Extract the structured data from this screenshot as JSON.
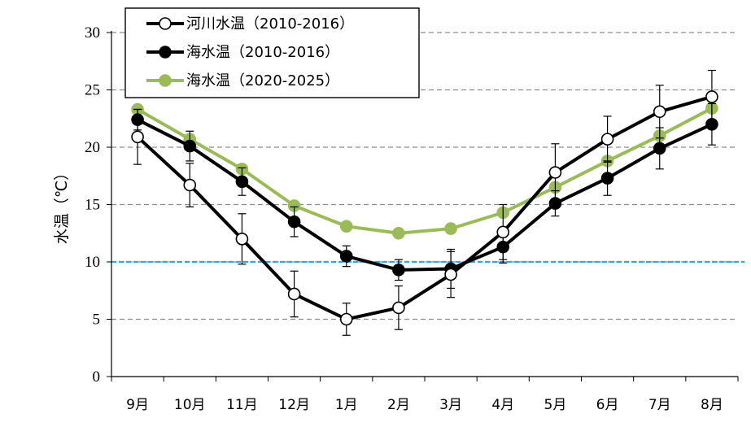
{
  "chart_data": {
    "type": "line",
    "title": "",
    "xlabel": "",
    "ylabel": "水温（℃）",
    "ylim": [
      0,
      30
    ],
    "yticks": [
      0,
      5,
      10,
      15,
      20,
      25,
      30
    ],
    "grid": "horizontal-dashed",
    "legend_position": "top-left",
    "categories": [
      "9月",
      "10月",
      "11月",
      "12月",
      "1月",
      "2月",
      "3月",
      "4月",
      "5月",
      "6月",
      "7月",
      "8月"
    ],
    "reference_line": {
      "y": 10,
      "color": "#29abe2"
    },
    "series": [
      {
        "name": "河川水温（2010-2016）",
        "marker": "open-circle",
        "color": "#000000",
        "values": [
          20.9,
          16.7,
          12.0,
          7.2,
          5.0,
          6.0,
          8.9,
          12.6,
          17.8,
          20.7,
          23.1,
          24.4
        ],
        "error": [
          2.4,
          1.9,
          2.2,
          2.0,
          1.4,
          1.9,
          2.0,
          2.4,
          2.5,
          2.0,
          2.3,
          2.3
        ]
      },
      {
        "name": "海水温（2010-2016）",
        "marker": "filled-circle",
        "color": "#000000",
        "values": [
          22.4,
          20.1,
          17.0,
          13.5,
          10.5,
          9.3,
          9.4,
          11.3,
          15.1,
          17.3,
          19.9,
          22.0
        ],
        "error": [
          0.9,
          1.3,
          1.2,
          1.3,
          0.9,
          0.9,
          1.7,
          1.4,
          1.1,
          1.5,
          1.8,
          1.8
        ]
      },
      {
        "name": "海水温（2020-2025）",
        "marker": "filled-circle",
        "color": "#9bbb59",
        "values": [
          23.3,
          20.7,
          18.1,
          14.9,
          13.1,
          12.5,
          12.9,
          14.3,
          16.5,
          18.8,
          21.0,
          23.4
        ],
        "error": []
      }
    ]
  }
}
